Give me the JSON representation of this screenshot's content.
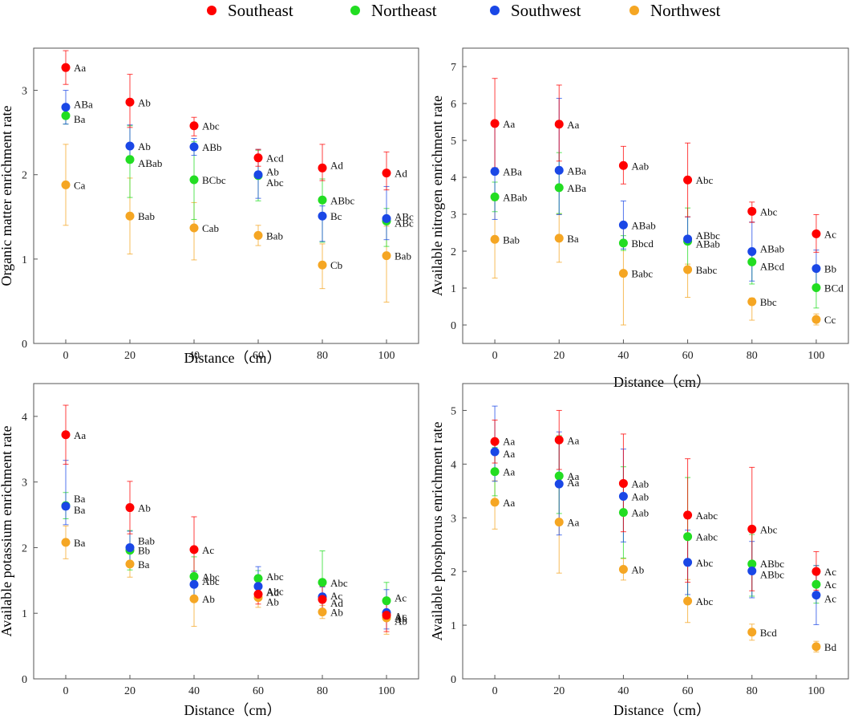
{
  "legend": {
    "southeast": "Southeast",
    "northeast": "Northeast",
    "southwest": "Southwest",
    "northwest": "Northwest"
  },
  "colors": {
    "southeast": "#ff0000",
    "northeast": "#22dd22",
    "southwest": "#1a47e6",
    "northwest": "#f5a623",
    "axis": "#555555"
  },
  "chart_data": [
    {
      "type": "scatter",
      "title": "",
      "xlabel": "Distance（cm）",
      "ylabel": "Organic matter enrichment rate",
      "x": [
        0,
        20,
        40,
        60,
        80,
        100
      ],
      "xlim": [
        -10,
        110
      ],
      "ylim": [
        0,
        3.5
      ],
      "yticks": [
        0,
        1,
        2,
        3
      ],
      "series": [
        {
          "name": "Southeast",
          "key": "southeast",
          "values": [
            3.27,
            2.86,
            2.58,
            2.2,
            2.08,
            2.02
          ],
          "err_lo": [
            0.2,
            0.3,
            0.12,
            0.1,
            0.15,
            0.2
          ],
          "err_hi": [
            0.2,
            0.33,
            0.1,
            0.1,
            0.28,
            0.25
          ],
          "labels": [
            "Aa",
            "Ab",
            "Abc",
            "Acd",
            "Ad",
            "Ad"
          ]
        },
        {
          "name": "Northeast",
          "key": "northeast",
          "values": [
            2.7,
            2.18,
            1.94,
            1.99,
            1.7,
            1.45
          ],
          "err_lo": [
            0.1,
            0.45,
            0.47,
            0.3,
            0.5,
            0.3
          ],
          "err_hi": [
            0.1,
            0.4,
            0.45,
            0.3,
            0.25,
            0.15
          ],
          "labels": [
            "Ba",
            "ABab",
            "BCbc",
            "Abc",
            "ABbc",
            "ABc"
          ]
        },
        {
          "name": "Southwest",
          "key": "southwest",
          "values": [
            2.8,
            2.34,
            2.33,
            2.0,
            1.51,
            1.48
          ],
          "err_lo": [
            0.2,
            0.2,
            0.1,
            0.28,
            0.3,
            0.25
          ],
          "err_hi": [
            0.2,
            0.25,
            0.1,
            0.3,
            0.12,
            0.38
          ],
          "labels": [
            "ABa",
            "Ab",
            "ABb",
            "Ab",
            "Bc",
            "ABc"
          ]
        },
        {
          "name": "Northwest",
          "key": "northwest",
          "values": [
            1.88,
            1.51,
            1.37,
            1.28,
            0.93,
            1.04
          ],
          "err_lo": [
            0.48,
            0.45,
            0.38,
            0.12,
            0.28,
            0.55
          ],
          "err_hi": [
            0.48,
            0.45,
            0.3,
            0.12,
            0.25,
            0.35
          ],
          "labels": [
            "Ca",
            "Bab",
            "Cab",
            "Bab",
            "Cb",
            "Bab"
          ]
        }
      ]
    },
    {
      "type": "scatter",
      "title": "",
      "xlabel": "Distance（cm）",
      "ylabel": "Available nitrogen enrichment rate",
      "x": [
        0,
        20,
        40,
        60,
        80,
        100
      ],
      "xlim": [
        -10,
        110
      ],
      "ylim": [
        -0.5,
        7.5
      ],
      "yticks": [
        0,
        1,
        2,
        3,
        4,
        5,
        6,
        7
      ],
      "series": [
        {
          "name": "Southeast",
          "key": "southeast",
          "values": [
            5.46,
            5.44,
            4.32,
            3.93,
            3.08,
            2.47
          ],
          "err_lo": [
            1.2,
            1.0,
            0.5,
            1.0,
            0.3,
            0.5
          ],
          "err_hi": [
            1.22,
            1.06,
            0.52,
            1.0,
            0.25,
            0.52
          ],
          "labels": [
            "Aa",
            "Aa",
            "Aab",
            "Abc",
            "Abc",
            "Ac"
          ]
        },
        {
          "name": "Northeast",
          "key": "northeast",
          "values": [
            3.47,
            3.72,
            2.22,
            2.27,
            1.71,
            1.01
          ],
          "err_lo": [
            0.4,
            0.7,
            0.2,
            0.8,
            0.6,
            0.55
          ],
          "err_hi": [
            0.4,
            0.95,
            0.2,
            0.9,
            0.3,
            0.5
          ],
          "labels": [
            "ABab",
            "ABa",
            "Bbcd",
            "ABab",
            "ABcd",
            "BCd"
          ]
        },
        {
          "name": "Southwest",
          "key": "southwest",
          "values": [
            4.16,
            4.19,
            2.71,
            2.33,
            1.99,
            1.53
          ],
          "err_lo": [
            1.3,
            1.2,
            0.65,
            0.1,
            0.8,
            0.5
          ],
          "err_hi": [
            1.3,
            1.95,
            0.65,
            0.6,
            0.8,
            0.5
          ],
          "labels": [
            "ABa",
            "ABa",
            "ABab",
            "ABbc",
            "ABab",
            "Bb"
          ]
        },
        {
          "name": "Northwest",
          "key": "northwest",
          "values": [
            2.32,
            2.35,
            1.4,
            1.5,
            0.63,
            0.15
          ],
          "err_lo": [
            1.05,
            0.65,
            1.4,
            0.75,
            0.5,
            0.15
          ],
          "err_hi": [
            1.05,
            0.65,
            1.4,
            0.15,
            0.1,
            0.15
          ],
          "labels": [
            "Bab",
            "Ba",
            "Babc",
            "Babc",
            "Bbc",
            "Cc"
          ]
        }
      ]
    },
    {
      "type": "scatter",
      "title": "",
      "xlabel": "Distance（cm）",
      "ylabel": "Available potassium enrichment rate",
      "x": [
        0,
        20,
        40,
        60,
        80,
        100
      ],
      "xlim": [
        -10,
        110
      ],
      "ylim": [
        0,
        4.5
      ],
      "yticks": [
        0,
        1,
        2,
        3,
        4
      ],
      "series": [
        {
          "name": "Southeast",
          "key": "southeast",
          "values": [
            3.72,
            2.61,
            1.97,
            1.29,
            1.21,
            0.97
          ],
          "err_lo": [
            0.45,
            0.4,
            0.5,
            0.15,
            0.2,
            0.25
          ],
          "err_hi": [
            0.45,
            0.4,
            0.5,
            0.15,
            0.2,
            0.2
          ],
          "labels": [
            "Aa",
            "Ab",
            "Ac",
            "Ad",
            "Ad",
            "Ab"
          ]
        },
        {
          "name": "Northeast",
          "key": "northeast",
          "values": [
            2.64,
            1.96,
            1.56,
            1.53,
            1.47,
            1.19
          ],
          "err_lo": [
            0.2,
            0.3,
            0.3,
            0.12,
            0.45,
            0.3
          ],
          "err_hi": [
            0.2,
            0.3,
            0.3,
            0.12,
            0.48,
            0.28
          ],
          "labels": [
            "Ba",
            "Bb",
            "Abc",
            "Abc",
            "Abc",
            "Ac"
          ]
        },
        {
          "name": "Southwest",
          "key": "southwest",
          "values": [
            2.63,
            2.0,
            1.44,
            1.41,
            1.25,
            1.01
          ],
          "err_lo": [
            0.28,
            0.25,
            0.2,
            0.15,
            0.2,
            0.25
          ],
          "err_hi": [
            0.7,
            0.25,
            0.2,
            0.3,
            0.15,
            0.35
          ],
          "labels": [
            "Ba",
            "Bab",
            "Abc",
            "Abc",
            "Ac",
            "Ac"
          ]
        },
        {
          "name": "Northwest",
          "key": "northwest",
          "values": [
            2.08,
            1.75,
            1.22,
            1.24,
            1.02,
            0.93
          ],
          "err_lo": [
            0.25,
            0.2,
            0.42,
            0.15,
            0.1,
            0.25
          ],
          "err_hi": [
            0.25,
            0.2,
            0.42,
            0.15,
            0.1,
            0.25
          ],
          "labels": [
            "Ba",
            "Ba",
            "Ab",
            "Ab",
            "Ab",
            "Ab"
          ]
        }
      ]
    },
    {
      "type": "scatter",
      "title": "",
      "xlabel": "Distance（cm）",
      "ylabel": "Available phosphorus enrichment rate",
      "x": [
        0,
        20,
        40,
        60,
        80,
        100
      ],
      "xlim": [
        -10,
        110
      ],
      "ylim": [
        0,
        5.5
      ],
      "yticks": [
        0,
        1,
        2,
        3,
        4,
        5
      ],
      "series": [
        {
          "name": "Southeast",
          "key": "southeast",
          "values": [
            4.42,
            4.45,
            3.64,
            3.05,
            2.79,
            2.0
          ],
          "err_lo": [
            0.4,
            0.55,
            0.9,
            1.25,
            1.15,
            0.35
          ],
          "err_hi": [
            0.4,
            0.55,
            0.92,
            1.05,
            1.15,
            0.37
          ],
          "labels": [
            "Aa",
            "Aa",
            "Aab",
            "Aabc",
            "Abc",
            "Ac"
          ]
        },
        {
          "name": "Northeast",
          "key": "northeast",
          "values": [
            3.86,
            3.78,
            3.1,
            2.65,
            2.14,
            1.76
          ],
          "err_lo": [
            0.45,
            0.7,
            0.85,
            1.2,
            0.6,
            0.35
          ],
          "err_hi": [
            0.45,
            0.75,
            0.85,
            1.1,
            0.55,
            0.35
          ],
          "labels": [
            "Aa",
            "Aa",
            "Aab",
            "Aabc",
            "ABbc",
            "Ac"
          ]
        },
        {
          "name": "Southwest",
          "key": "southwest",
          "values": [
            4.23,
            3.63,
            3.4,
            2.17,
            2.01,
            1.56
          ],
          "err_lo": [
            0.55,
            0.95,
            0.85,
            0.6,
            0.5,
            0.55
          ],
          "err_hi": [
            0.85,
            0.97,
            0.88,
            0.6,
            0.55,
            0.55
          ],
          "labels": [
            "Aa",
            "Aa",
            "Aab",
            "Abc",
            "ABbc",
            "Ac"
          ]
        },
        {
          "name": "Northwest",
          "key": "northwest",
          "values": [
            3.29,
            2.92,
            2.04,
            1.45,
            0.87,
            0.6
          ],
          "err_lo": [
            0.5,
            0.95,
            0.2,
            0.4,
            0.15,
            0.1
          ],
          "err_hi": [
            0.4,
            0.75,
            0.2,
            0.4,
            0.15,
            0.1
          ],
          "labels": [
            "Aa",
            "Aa",
            "Ab",
            "Abc",
            "Bcd",
            "Bd"
          ]
        }
      ]
    }
  ]
}
